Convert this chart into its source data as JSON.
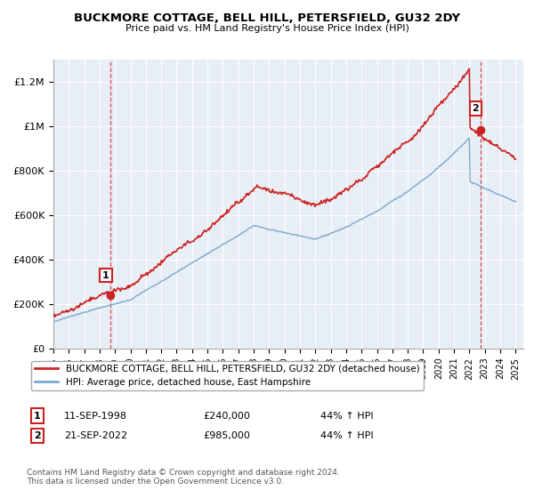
{
  "title": "BUCKMORE COTTAGE, BELL HILL, PETERSFIELD, GU32 2DY",
  "subtitle": "Price paid vs. HM Land Registry's House Price Index (HPI)",
  "legend_line1": "BUCKMORE COTTAGE, BELL HILL, PETERSFIELD, GU32 2DY (detached house)",
  "legend_line2": "HPI: Average price, detached house, East Hampshire",
  "annotation1_label": "1",
  "annotation1_date": "11-SEP-1998",
  "annotation1_price": "£240,000",
  "annotation1_hpi": "44% ↑ HPI",
  "annotation2_label": "2",
  "annotation2_date": "21-SEP-2022",
  "annotation2_price": "£985,000",
  "annotation2_hpi": "44% ↑ HPI",
  "footer": "Contains HM Land Registry data © Crown copyright and database right 2024.\nThis data is licensed under the Open Government Licence v3.0.",
  "red_color": "#cc2222",
  "blue_color": "#7aaad0",
  "bg_color": "#e8eef5",
  "ylim": [
    0,
    1300000
  ],
  "yticks": [
    0,
    200000,
    400000,
    600000,
    800000,
    1000000,
    1200000
  ],
  "ytick_labels": [
    "£0",
    "£200K",
    "£400K",
    "£600K",
    "£800K",
    "£1M",
    "£1.2M"
  ],
  "xmin": 1995,
  "xmax": 2025.5,
  "sale1_x": 1998.708,
  "sale1_y": 240000,
  "sale2_x": 2022.708,
  "sale2_y": 985000
}
